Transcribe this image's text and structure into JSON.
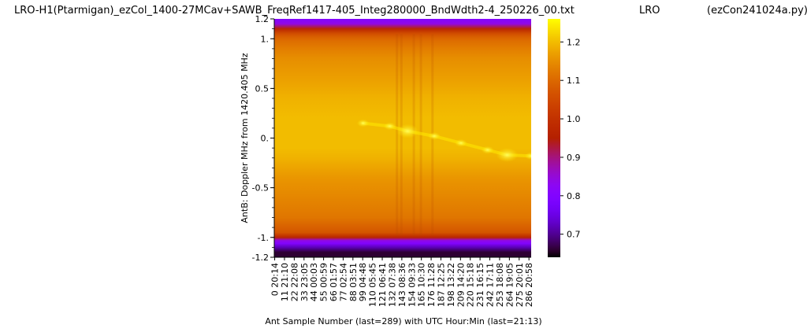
{
  "title": {
    "left": "LRO-H1(Ptarmigan)_ezCol_1400-27MCav+SAWB_FreqRef1417-405_Integ280000_BndWdth2-4_250226_00.txt",
    "middle": "LRO",
    "right": "(ezCon241024a.py)"
  },
  "chart_data": {
    "type": "heatmap",
    "xlabel": "Ant Sample Number (last=289) with UTC Hour:Min (last=21:13)",
    "ylabel": "AntB:  Doppler MHz from 1420.405 MHz",
    "x_range": [
      0,
      289
    ],
    "y_range": [
      -1.2,
      1.2
    ],
    "x_tick_labels": [
      {
        "sample": 0,
        "label": "0  20:14"
      },
      {
        "sample": 11,
        "label": "11  21:10"
      },
      {
        "sample": 22,
        "label": "22  22:08"
      },
      {
        "sample": 33,
        "label": "33  23:05"
      },
      {
        "sample": 44,
        "label": "44  00:03"
      },
      {
        "sample": 55,
        "label": "55  00:59"
      },
      {
        "sample": 66,
        "label": "66  01:57"
      },
      {
        "sample": 77,
        "label": "77  02:54"
      },
      {
        "sample": 88,
        "label": "88  03:51"
      },
      {
        "sample": 99,
        "label": "99  04:48"
      },
      {
        "sample": 110,
        "label": "110  05:45"
      },
      {
        "sample": 121,
        "label": "121  06:41"
      },
      {
        "sample": 132,
        "label": "132  07:38"
      },
      {
        "sample": 143,
        "label": "143  08:36"
      },
      {
        "sample": 154,
        "label": "154  09:33"
      },
      {
        "sample": 165,
        "label": "165  10:30"
      },
      {
        "sample": 176,
        "label": "176  11:28"
      },
      {
        "sample": 187,
        "label": "187  12:25"
      },
      {
        "sample": 198,
        "label": "198  13:22"
      },
      {
        "sample": 209,
        "label": "209  14:20"
      },
      {
        "sample": 220,
        "label": "220  15:18"
      },
      {
        "sample": 231,
        "label": "231  16:15"
      },
      {
        "sample": 242,
        "label": "242  17:11"
      },
      {
        "sample": 253,
        "label": "253  18:08"
      },
      {
        "sample": 264,
        "label": "264  19:05"
      },
      {
        "sample": 275,
        "label": "275  20:01"
      },
      {
        "sample": 286,
        "label": "286  20:58"
      }
    ],
    "y_tick_labels": [
      {
        "value": 1.2,
        "label": "1.2"
      },
      {
        "value": 1.0,
        "label": "1."
      },
      {
        "value": 0.5,
        "label": "0.5"
      },
      {
        "value": 0.0,
        "label": "0."
      },
      {
        "value": -0.5,
        "label": "-0.5"
      },
      {
        "value": -1.0,
        "label": "-1."
      },
      {
        "value": -1.2,
        "label": "-1.2"
      }
    ],
    "y_minor_step": 0.1,
    "colormap": "gnuplot",
    "colorbar": {
      "min": 0.64,
      "max": 1.26,
      "ticks": [
        0.7,
        0.8,
        0.9,
        1.0,
        1.1,
        1.2
      ],
      "tick_labels": [
        "0.7",
        "0.8",
        "0.9",
        "1.0",
        "1.1",
        "1.2"
      ]
    },
    "value_profile_vs_doppler": [
      {
        "mhz": 1.2,
        "value": 0.8
      },
      {
        "mhz": 1.15,
        "value": 0.84
      },
      {
        "mhz": 1.1,
        "value": 0.97
      },
      {
        "mhz": 1.05,
        "value": 1.06
      },
      {
        "mhz": 1.0,
        "value": 1.1
      },
      {
        "mhz": 0.9,
        "value": 1.13
      },
      {
        "mhz": 0.8,
        "value": 1.15
      },
      {
        "mhz": 0.6,
        "value": 1.17
      },
      {
        "mhz": 0.4,
        "value": 1.19
      },
      {
        "mhz": 0.2,
        "value": 1.2
      },
      {
        "mhz": 0.1,
        "value": 1.2
      },
      {
        "mhz": 0.0,
        "value": 1.2
      },
      {
        "mhz": -0.1,
        "value": 1.2
      },
      {
        "mhz": -0.2,
        "value": 1.19
      },
      {
        "mhz": -0.4,
        "value": 1.16
      },
      {
        "mhz": -0.6,
        "value": 1.14
      },
      {
        "mhz": -0.8,
        "value": 1.12
      },
      {
        "mhz": -0.95,
        "value": 1.07
      },
      {
        "mhz": -1.0,
        "value": 0.97
      },
      {
        "mhz": -1.03,
        "value": 0.84
      },
      {
        "mhz": -1.06,
        "value": 0.8
      },
      {
        "mhz": -1.1,
        "value": 0.72
      },
      {
        "mhz": -1.15,
        "value": 0.66
      },
      {
        "mhz": -1.2,
        "value": 0.66
      }
    ],
    "bright_feature_track": [
      {
        "sample": 100,
        "mhz": 0.15,
        "value": 1.22
      },
      {
        "sample": 130,
        "mhz": 0.12,
        "value": 1.23
      },
      {
        "sample": 150,
        "mhz": 0.07,
        "value": 1.26
      },
      {
        "sample": 180,
        "mhz": 0.02,
        "value": 1.22
      },
      {
        "sample": 210,
        "mhz": -0.05,
        "value": 1.22
      },
      {
        "sample": 240,
        "mhz": -0.12,
        "value": 1.23
      },
      {
        "sample": 262,
        "mhz": -0.17,
        "value": 1.26
      },
      {
        "sample": 289,
        "mhz": -0.18,
        "value": 1.22
      }
    ],
    "stripe_samples": [
      138,
      143,
      157,
      165,
      178
    ]
  }
}
